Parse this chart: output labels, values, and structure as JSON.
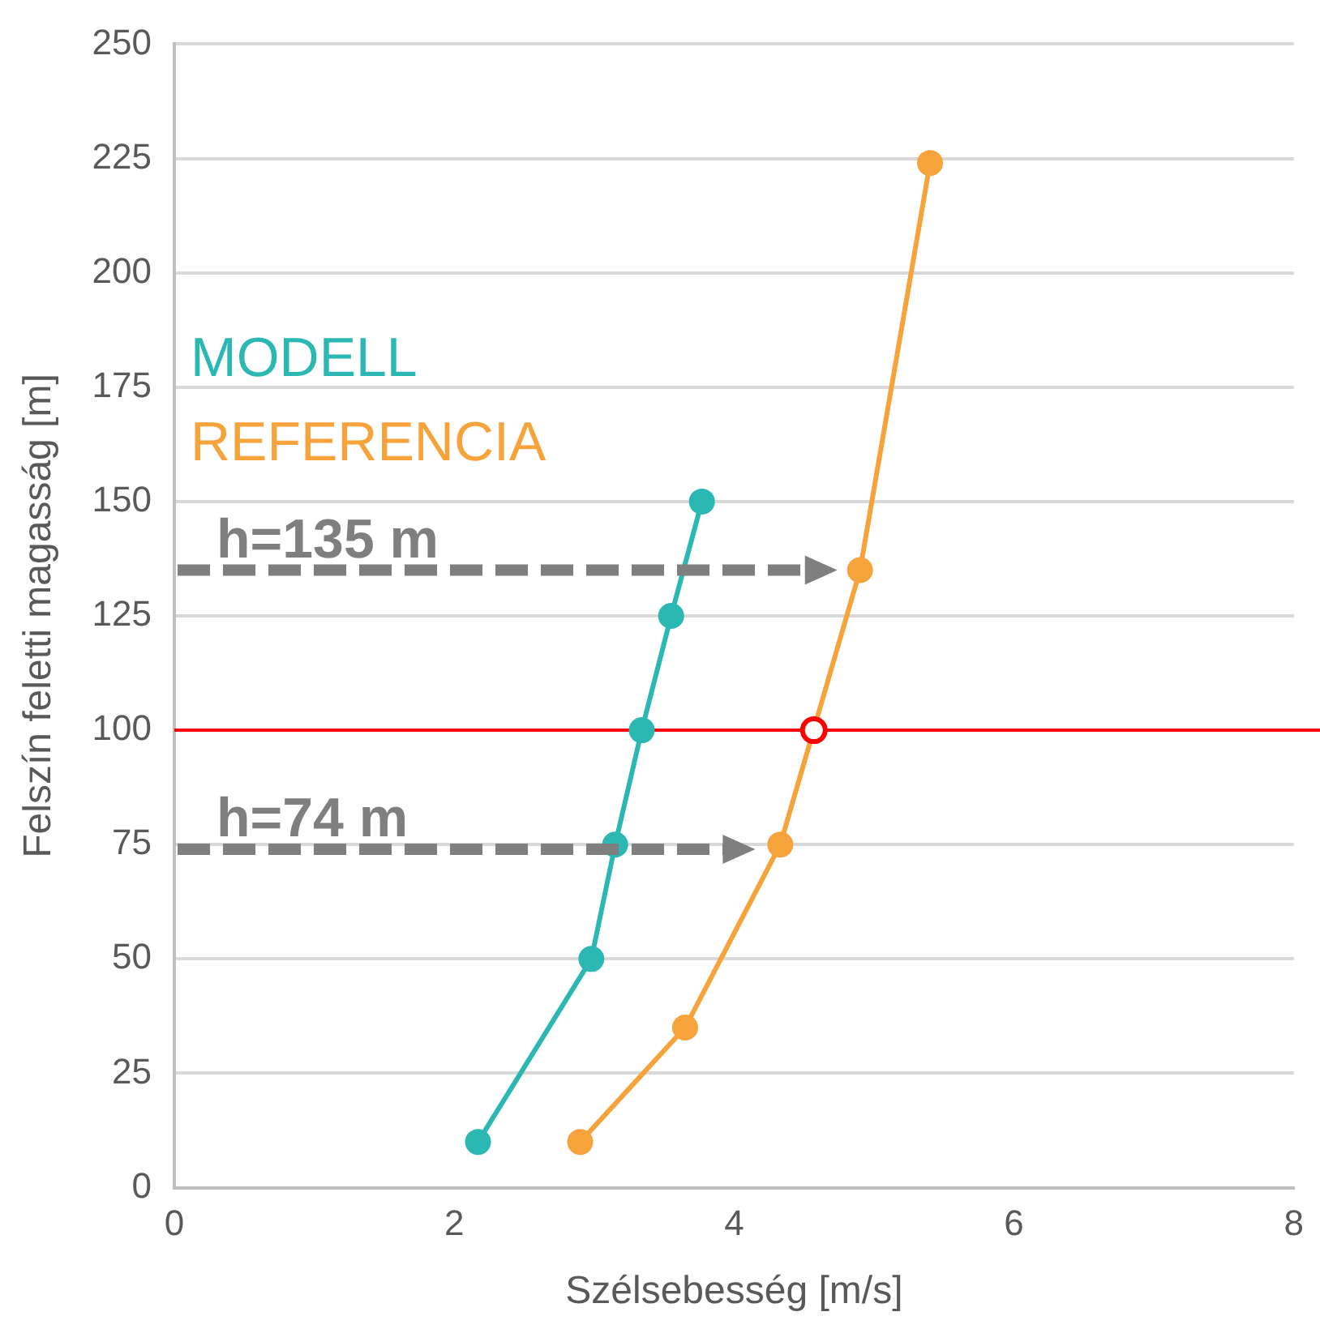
{
  "chart_data": {
    "type": "line",
    "xlabel": "Szélsebesség [m/s]",
    "ylabel": "Felszín feletti magasság [m]",
    "xlim": [
      0,
      8
    ],
    "xticks": [
      0,
      2,
      4,
      6,
      8
    ],
    "ylim": [
      0,
      250
    ],
    "yticks": [
      0,
      25,
      50,
      75,
      100,
      125,
      150,
      175,
      200,
      225,
      250
    ],
    "grid": "y",
    "legend": "left",
    "marker": "circle",
    "line_style": "solid",
    "series": [
      {
        "name": "MODELL",
        "color": "#2bb8b3",
        "x": [
          2.17,
          2.98,
          3.15,
          3.34,
          3.55,
          3.77
        ],
        "values": [
          10,
          50,
          75,
          100,
          125,
          150
        ]
      },
      {
        "name": "REFERENCIA",
        "color": "#f5a33a",
        "x": [
          2.9,
          3.65,
          4.33,
          4.9,
          5.4
        ],
        "values": [
          10,
          35,
          75,
          135,
          224
        ]
      },
      {
        "type": "scatter",
        "color": "#ff0000",
        "x": [
          4.57
        ],
        "values": [
          100
        ]
      }
    ],
    "ref_lines": [
      {
        "axis": "y",
        "value": 100,
        "color": "#ff0000",
        "line_style": "solid"
      },
      {
        "axis": "y",
        "value": 135,
        "label": "h=135 m",
        "color": "#7f7f7f",
        "line_style": "dashed"
      },
      {
        "axis": "y",
        "value": 74,
        "label": "h=74 m",
        "color": "#7f7f7f",
        "line_style": "dashed"
      }
    ]
  }
}
